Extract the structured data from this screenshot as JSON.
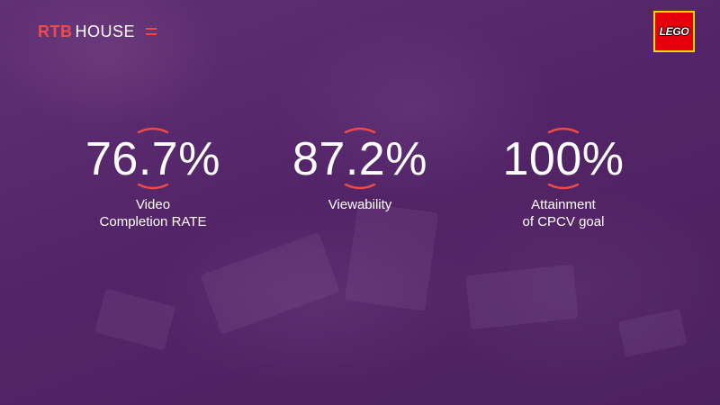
{
  "header": {
    "logo_rtb": "RTB",
    "logo_house": "HOUSE",
    "client_logo_text": "LEGO"
  },
  "stats": [
    {
      "value": "76.7%",
      "label": "Video\nCompletion RATE"
    },
    {
      "value": "87.2%",
      "label": "Viewability"
    },
    {
      "value": "100%",
      "label": "Attainment\nof CPCV goal"
    }
  ],
  "colors": {
    "accent": "#ef4a48",
    "overlay": "#5a2f6e",
    "client_logo_bg": "#e3000b",
    "client_logo_border": "#ffd500"
  }
}
